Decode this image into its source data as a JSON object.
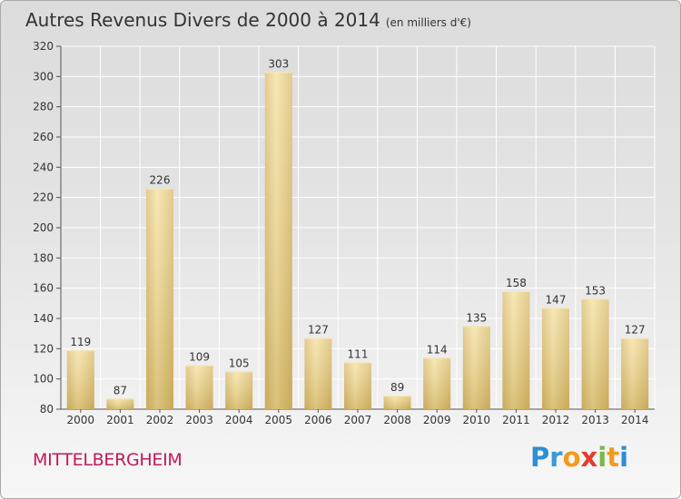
{
  "title": "Autres Revenus Divers de 2000 à 2014",
  "unit": "(en milliers d'€)",
  "commune": "MITTELBERGHEIM",
  "brand": {
    "text": "Proxiti",
    "letters": [
      {
        "ch": "P",
        "color": "#2e8ed6"
      },
      {
        "ch": "r",
        "color": "#3a9ad9"
      },
      {
        "ch": "o",
        "color": "#f29a1d"
      },
      {
        "ch": "x",
        "color": "#e63b2e"
      },
      {
        "ch": "i",
        "color": "#7ab648"
      },
      {
        "ch": "t",
        "color": "#f29a1d"
      },
      {
        "ch": "i",
        "color": "#2e8ed6"
      }
    ]
  },
  "chart_data": {
    "type": "bar",
    "categories": [
      "2000",
      "2001",
      "2002",
      "2003",
      "2004",
      "2005",
      "2006",
      "2007",
      "2008",
      "2009",
      "2010",
      "2011",
      "2012",
      "2013",
      "2014"
    ],
    "values": [
      119,
      87,
      226,
      109,
      105,
      303,
      127,
      111,
      89,
      114,
      135,
      158,
      147,
      153,
      127
    ],
    "ylim": [
      80,
      320
    ],
    "yticks": [
      80,
      100,
      120,
      140,
      160,
      180,
      200,
      220,
      240,
      260,
      280,
      300,
      320
    ],
    "grid": true,
    "bar_color": "#e8cf82"
  }
}
